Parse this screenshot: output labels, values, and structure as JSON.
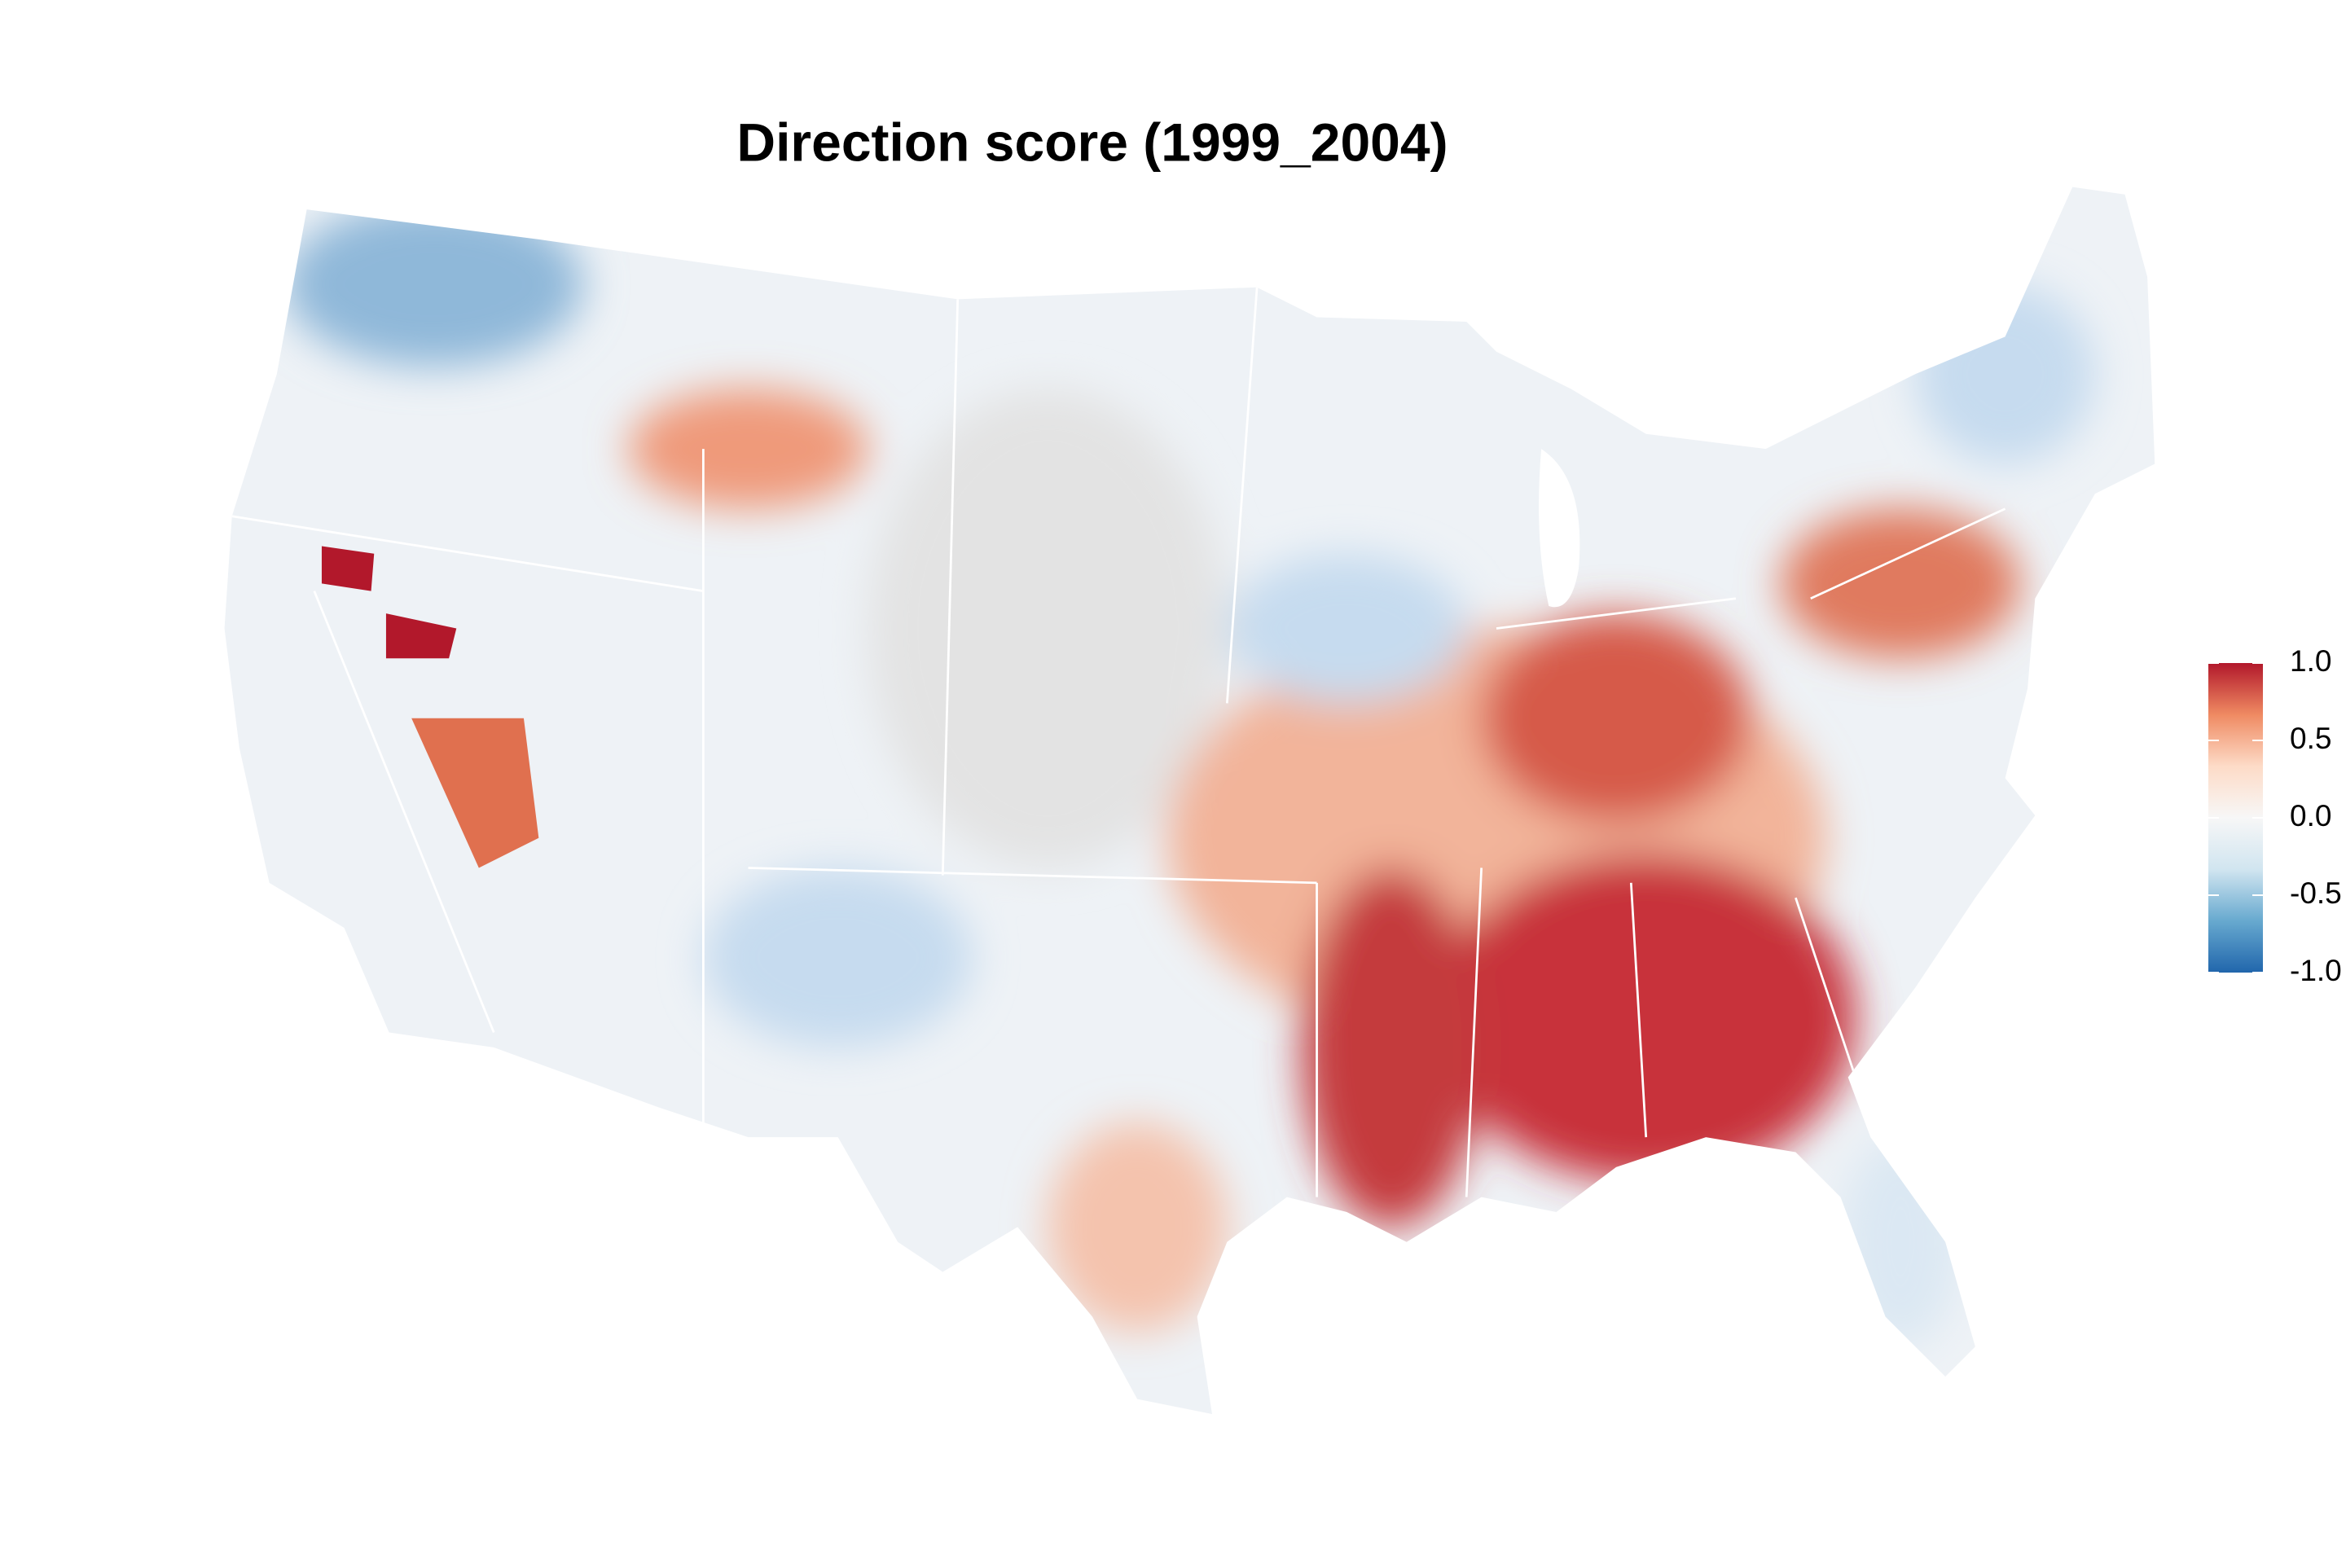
{
  "title": "Direction score (1999_2004)",
  "legend": {
    "lim": [
      -1,
      1
    ],
    "ticks": [
      {
        "value": -1,
        "label": "-1.0"
      },
      -0.5,
      {
        "value": 0,
        "label": "0.0"
      },
      0.5,
      {
        "value": 1,
        "label": "1.0"
      }
    ],
    "colors": [
      "#2166ac",
      "#67a9cf",
      "#d1e5f0",
      "#f7f7f7",
      "#fddbc7",
      "#ef8a62",
      "#b2182b"
    ]
  }
}
